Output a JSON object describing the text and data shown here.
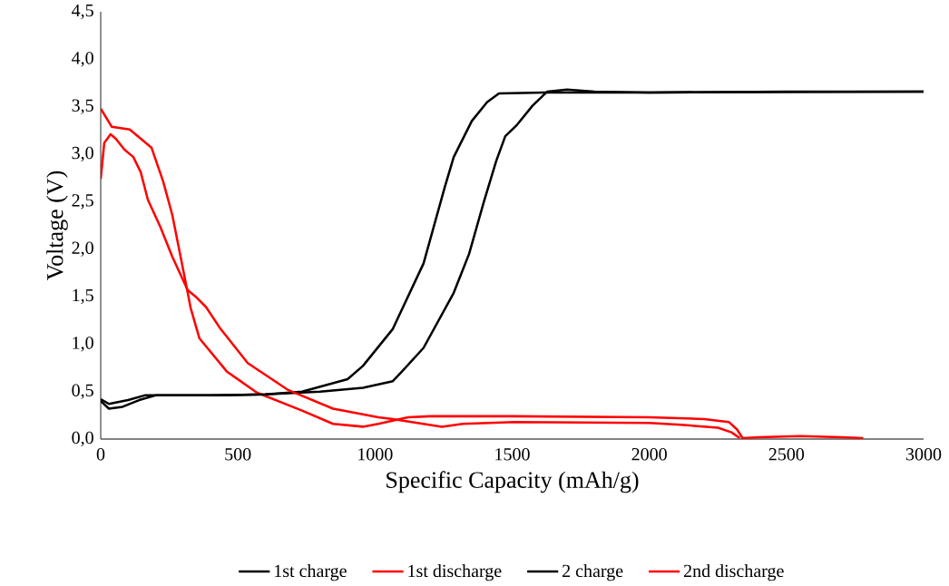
{
  "chart_data": {
    "type": "line",
    "xlabel": "Specific Capacity (mAh/g)",
    "ylabel": "Voltage (V)",
    "xlim": [
      0,
      3000
    ],
    "ylim": [
      0,
      4.5
    ],
    "xticks": [
      0,
      500,
      1000,
      1500,
      2000,
      2500,
      3000
    ],
    "yticks": [
      {
        "value": 0,
        "label": "0,0"
      },
      {
        "value": 0.5,
        "label": "0,5"
      },
      {
        "value": 1,
        "label": "1,0"
      },
      {
        "value": 1.5,
        "label": "1,5"
      },
      {
        "value": 2,
        "label": "2,0"
      },
      {
        "value": 2.5,
        "label": "2,5"
      },
      {
        "value": 3,
        "label": "3,0"
      },
      {
        "value": 3.5,
        "label": "3,5"
      },
      {
        "value": 4,
        "label": "4,0"
      },
      {
        "value": 4.5,
        "label": "4,5"
      }
    ],
    "legend": "bottom",
    "series": [
      {
        "name": "1st charge",
        "color": "#000000",
        "x": [
          0,
          30,
          80,
          140,
          200,
          400,
          600,
          800,
          956,
          1065,
          1098,
          1177,
          1287,
          1343,
          1396,
          1442,
          1475,
          1518,
          1574,
          1628,
          1700,
          1800,
          2000,
          2500,
          3000
        ],
        "values": [
          0.4,
          0.32,
          0.34,
          0.41,
          0.46,
          0.46,
          0.47,
          0.5,
          0.54,
          0.61,
          0.71,
          0.96,
          1.54,
          1.95,
          2.49,
          2.93,
          3.19,
          3.31,
          3.51,
          3.66,
          3.68,
          3.66,
          3.65,
          3.66,
          3.66
        ]
      },
      {
        "name": "1st discharge",
        "color": "#ff0000",
        "x": [
          0,
          40,
          106,
          185,
          228,
          261,
          294,
          328,
          360,
          460,
          569,
          734,
          847,
          956,
          1012,
          1121,
          1200,
          1500,
          2000,
          2200,
          2290,
          2320,
          2340,
          2400,
          2550,
          2700,
          2780
        ],
        "values": [
          3.48,
          3.29,
          3.26,
          3.07,
          2.71,
          2.36,
          1.88,
          1.38,
          1.06,
          0.71,
          0.49,
          0.3,
          0.16,
          0.13,
          0.16,
          0.23,
          0.24,
          0.24,
          0.23,
          0.21,
          0.18,
          0.1,
          0.01,
          0.02,
          0.03,
          0.02,
          0.01
        ]
      },
      {
        "name": "2 charge",
        "color": "#000000",
        "x": [
          0,
          30,
          100,
          160,
          400,
          600,
          734,
          900,
          956,
          1065,
          1177,
          1254,
          1287,
          1353,
          1409,
          1452,
          1618,
          2000,
          3000
        ],
        "values": [
          0.42,
          0.37,
          0.41,
          0.46,
          0.46,
          0.47,
          0.5,
          0.63,
          0.77,
          1.16,
          1.85,
          2.65,
          2.97,
          3.35,
          3.55,
          3.64,
          3.65,
          3.65,
          3.66
        ]
      },
      {
        "name": "2nd discharge",
        "color": "#ff0000",
        "x": [
          0,
          13,
          36,
          56,
          86,
          119,
          146,
          172,
          218,
          261,
          317,
          350,
          384,
          437,
          536,
          681,
          847,
          1012,
          1065,
          1244,
          1320,
          1508,
          2000,
          2114,
          2250,
          2300,
          2330
        ],
        "values": [
          2.74,
          3.12,
          3.21,
          3.16,
          3.05,
          2.97,
          2.81,
          2.52,
          2.23,
          1.92,
          1.57,
          1.49,
          1.39,
          1.16,
          0.8,
          0.52,
          0.32,
          0.23,
          0.21,
          0.13,
          0.16,
          0.18,
          0.17,
          0.15,
          0.12,
          0.07,
          0.01
        ]
      }
    ]
  }
}
